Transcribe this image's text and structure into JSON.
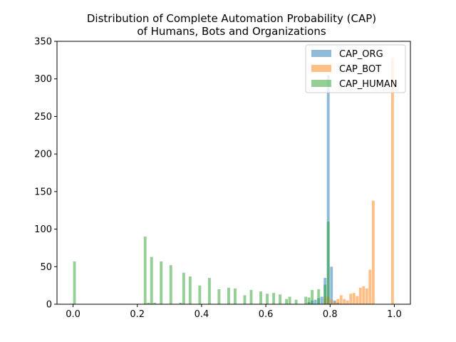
{
  "chart_data": {
    "type": "bar",
    "title": "Distribution of Complete Automation Probability (CAP)",
    "subtitle": "of Humans, Bots and Organizations",
    "xlabel": "",
    "ylabel": "",
    "xlim": [
      -0.05,
      1.05
    ],
    "ylim": [
      0,
      350
    ],
    "xticks": [
      "0.0",
      "0.2",
      "0.4",
      "0.6",
      "0.8",
      "1.0"
    ],
    "yticks": [
      "0",
      "50",
      "100",
      "150",
      "200",
      "250",
      "300",
      "350"
    ],
    "grid": false,
    "legend_position": "top-right",
    "bin_width": 0.01,
    "series": [
      {
        "name": "CAP_ORG",
        "color": "#1f77b4",
        "opacity": 0.5,
        "bins": [
          {
            "x": 0.73,
            "y": 3
          },
          {
            "x": 0.74,
            "y": 5
          },
          {
            "x": 0.75,
            "y": 6
          },
          {
            "x": 0.76,
            "y": 8
          },
          {
            "x": 0.77,
            "y": 10
          },
          {
            "x": 0.78,
            "y": 35
          },
          {
            "x": 0.79,
            "y": 305
          },
          {
            "x": 0.8,
            "y": 50
          },
          {
            "x": 0.81,
            "y": 5
          },
          {
            "x": 0.82,
            "y": 2
          }
        ]
      },
      {
        "name": "CAP_BOT",
        "color": "#ff7f0e",
        "opacity": 0.5,
        "bins": [
          {
            "x": 0.78,
            "y": 8
          },
          {
            "x": 0.79,
            "y": 10
          },
          {
            "x": 0.8,
            "y": 6
          },
          {
            "x": 0.81,
            "y": 3
          },
          {
            "x": 0.82,
            "y": 7
          },
          {
            "x": 0.83,
            "y": 12
          },
          {
            "x": 0.84,
            "y": 7
          },
          {
            "x": 0.85,
            "y": 5
          },
          {
            "x": 0.86,
            "y": 14
          },
          {
            "x": 0.87,
            "y": 15
          },
          {
            "x": 0.88,
            "y": 11
          },
          {
            "x": 0.89,
            "y": 22
          },
          {
            "x": 0.9,
            "y": 24
          },
          {
            "x": 0.91,
            "y": 21
          },
          {
            "x": 0.92,
            "y": 46
          },
          {
            "x": 0.93,
            "y": 138
          },
          {
            "x": 0.99,
            "y": 328
          }
        ]
      },
      {
        "name": "CAP_HUMAN",
        "color": "#2ca02c",
        "opacity": 0.5,
        "bins": [
          {
            "x": 0.0,
            "y": 57
          },
          {
            "x": 0.22,
            "y": 90
          },
          {
            "x": 0.23,
            "y": 2
          },
          {
            "x": 0.24,
            "y": 63
          },
          {
            "x": 0.25,
            "y": 2
          },
          {
            "x": 0.27,
            "y": 57
          },
          {
            "x": 0.3,
            "y": 52
          },
          {
            "x": 0.33,
            "y": 2
          },
          {
            "x": 0.34,
            "y": 42
          },
          {
            "x": 0.36,
            "y": 37
          },
          {
            "x": 0.39,
            "y": 25
          },
          {
            "x": 0.42,
            "y": 35
          },
          {
            "x": 0.45,
            "y": 20
          },
          {
            "x": 0.48,
            "y": 22
          },
          {
            "x": 0.5,
            "y": 21
          },
          {
            "x": 0.53,
            "y": 12
          },
          {
            "x": 0.55,
            "y": 19
          },
          {
            "x": 0.58,
            "y": 17
          },
          {
            "x": 0.6,
            "y": 14
          },
          {
            "x": 0.62,
            "y": 15
          },
          {
            "x": 0.64,
            "y": 13
          },
          {
            "x": 0.66,
            "y": 7
          },
          {
            "x": 0.67,
            "y": 10
          },
          {
            "x": 0.69,
            "y": 6
          },
          {
            "x": 0.72,
            "y": 10
          },
          {
            "x": 0.73,
            "y": 9
          },
          {
            "x": 0.74,
            "y": 19
          },
          {
            "x": 0.76,
            "y": 20
          },
          {
            "x": 0.78,
            "y": 26
          },
          {
            "x": 0.79,
            "y": 110
          }
        ]
      }
    ]
  }
}
